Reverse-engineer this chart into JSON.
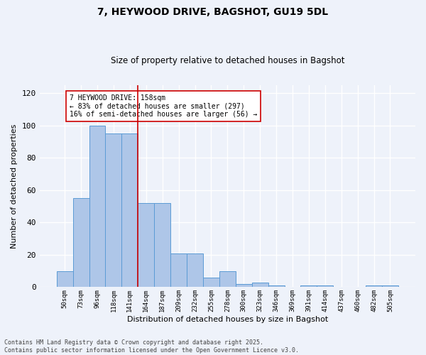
{
  "title1": "7, HEYWOOD DRIVE, BAGSHOT, GU19 5DL",
  "title2": "Size of property relative to detached houses in Bagshot",
  "xlabel": "Distribution of detached houses by size in Bagshot",
  "ylabel": "Number of detached properties",
  "categories": [
    "50sqm",
    "73sqm",
    "96sqm",
    "118sqm",
    "141sqm",
    "164sqm",
    "187sqm",
    "209sqm",
    "232sqm",
    "255sqm",
    "278sqm",
    "300sqm",
    "323sqm",
    "346sqm",
    "369sqm",
    "391sqm",
    "414sqm",
    "437sqm",
    "460sqm",
    "482sqm",
    "505sqm"
  ],
  "values": [
    10,
    55,
    100,
    95,
    95,
    52,
    52,
    21,
    21,
    6,
    10,
    2,
    3,
    1,
    0,
    1,
    1,
    0,
    0,
    1,
    1
  ],
  "bar_color": "#aec6e8",
  "bar_edge_color": "#5b9bd5",
  "vline_color": "#cc0000",
  "vline_x_idx": 4.5,
  "annotation_text": "7 HEYWOOD DRIVE: 158sqm\n← 83% of detached houses are smaller (297)\n16% of semi-detached houses are larger (56) →",
  "annotation_box_color": "#ffffff",
  "annotation_box_edge": "#cc0000",
  "ylim": [
    0,
    125
  ],
  "yticks": [
    0,
    20,
    40,
    60,
    80,
    100,
    120
  ],
  "footer": "Contains HM Land Registry data © Crown copyright and database right 2025.\nContains public sector information licensed under the Open Government Licence v3.0.",
  "bg_color": "#eef2fa",
  "grid_color": "#ffffff"
}
